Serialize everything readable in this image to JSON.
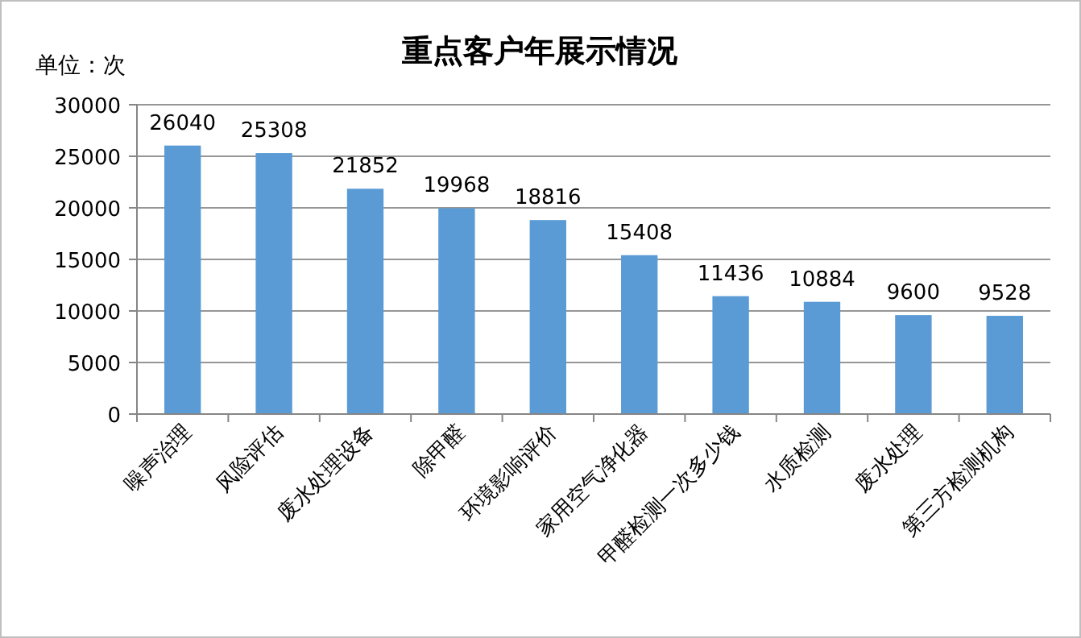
{
  "chart_data": {
    "type": "bar",
    "title": "重点客户年展示情况",
    "ylabel": "单位：次",
    "categories": [
      "噪声治理",
      "风险评估",
      "废水处理设备",
      "除甲醛",
      "环境影响评价",
      "家用空气净化器",
      "甲醛检测一次多少钱",
      "水质检测",
      "废水处理",
      "第三方检测机构"
    ],
    "values": [
      26040,
      25308,
      21852,
      19968,
      18816,
      15408,
      11436,
      10884,
      9600,
      9528
    ],
    "color": "#5b9bd5",
    "ylim": [
      0,
      30000
    ],
    "yticks": [
      0,
      5000,
      10000,
      15000,
      20000,
      25000,
      30000
    ],
    "grid": "y",
    "data_labels": true
  }
}
